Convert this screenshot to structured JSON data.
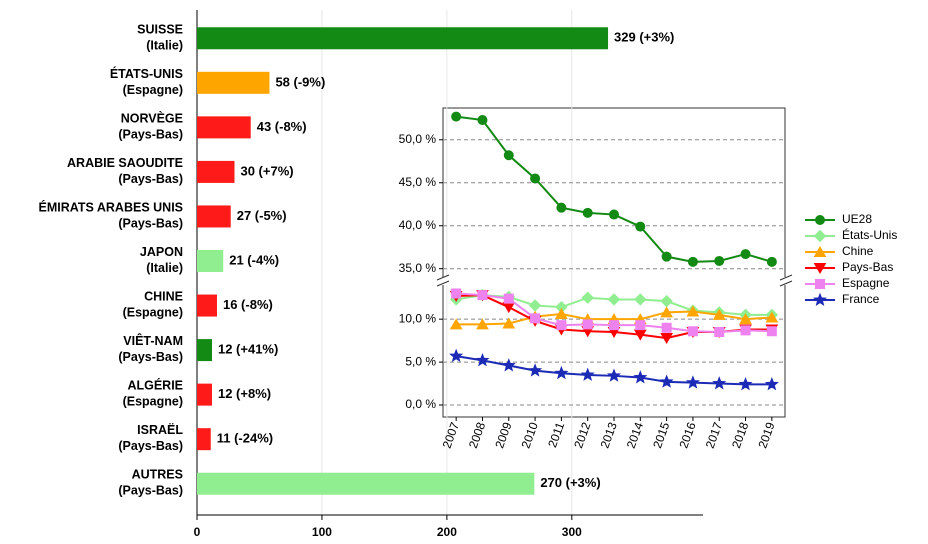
{
  "chart_data": [
    {
      "type": "hbar",
      "categories": [
        "SUISSE",
        "ÉTATS-UNIS",
        "NORVÈGE",
        "ARABIE SAOUDITE",
        "ÉMIRATS ARABES UNIS",
        "JAPON",
        "CHINE",
        "VIÊT-NAM",
        "ALGÉRIE",
        "ISRAËL",
        "AUTRES"
      ],
      "category_notes": [
        "(Italie)",
        "(Espagne)",
        "(Pays-Bas)",
        "(Pays-Bas)",
        "(Pays-Bas)",
        "(Italie)",
        "(Espagne)",
        "(Pays-Bas)",
        "(Espagne)",
        "(Pays-Bas)",
        "(Pays-Bas)"
      ],
      "values": [
        329,
        58,
        43,
        30,
        27,
        21,
        16,
        12,
        12,
        11,
        270
      ],
      "value_labels": [
        "329 (+3%)",
        "58 (-9%)",
        "43 (-8%)",
        "30 (+7%)",
        "27 (-5%)",
        "21 (-4%)",
        "16 (-8%)",
        "12 (+41%)",
        "12 (+8%)",
        "11 (-24%)",
        "270 (+3%)"
      ],
      "colors": [
        "#138a13",
        "#ffa500",
        "#ff1a1a",
        "#ff1a1a",
        "#ff1a1a",
        "#90ee90",
        "#ff1a1a",
        "#138a13",
        "#ff1a1a",
        "#ff1a1a",
        "#90ee90"
      ],
      "xlim": [
        0,
        405
      ],
      "xticks": [
        0,
        100,
        200,
        300
      ],
      "grid": true
    },
    {
      "type": "line",
      "x": [
        2007,
        2008,
        2009,
        2010,
        2011,
        2012,
        2013,
        2014,
        2015,
        2016,
        2017,
        2018,
        2019
      ],
      "xlim": [
        2006.5,
        2019.5
      ],
      "ylim": [
        -1.4,
        14.1
      ],
      "yticks": [
        {
          "value": 0,
          "label": "0,0 %"
        },
        {
          "value": 5,
          "label": "5,0 %"
        },
        {
          "value": 10,
          "label": "10,0 %"
        }
      ],
      "ylim_upper": [
        33.8,
        53.7
      ],
      "yticks_upper": [
        {
          "value": 35,
          "label": "35,0 %"
        },
        {
          "value": 40,
          "label": "40,0 %"
        },
        {
          "value": 45,
          "label": "45,0 %"
        },
        {
          "value": 50,
          "label": "50,0 %"
        }
      ],
      "grid": true,
      "legend": "right",
      "series": [
        {
          "name": "UE28",
          "color": "#138a13",
          "marker": "circle",
          "axis": "upper",
          "values": [
            52.7,
            52.3,
            48.2,
            45.5,
            42.1,
            41.5,
            41.3,
            39.9,
            36.4,
            35.8,
            35.9,
            36.7,
            35.8
          ]
        },
        {
          "name": "États-Unis",
          "color": "#90ee90",
          "marker": "diamond",
          "values": [
            12.3,
            12.8,
            12.6,
            11.6,
            11.4,
            12.5,
            12.3,
            12.3,
            12.1,
            11.0,
            10.8,
            10.5,
            10.5
          ]
        },
        {
          "name": "Chine",
          "color": "#ffa500",
          "marker": "triangle",
          "values": [
            9.4,
            9.4,
            9.5,
            10.3,
            10.6,
            10.0,
            10.0,
            10.0,
            10.8,
            10.9,
            10.5,
            10.0,
            10.2
          ]
        },
        {
          "name": "Pays-Bas",
          "color": "#ff0000",
          "marker": "triangle-down",
          "values": [
            12.7,
            12.8,
            11.4,
            9.8,
            8.8,
            8.6,
            8.5,
            8.2,
            7.8,
            8.5,
            8.5,
            8.8,
            8.8
          ]
        },
        {
          "name": "Espagne",
          "color": "#ee82ee",
          "marker": "square",
          "values": [
            13.0,
            12.8,
            12.4,
            10.1,
            9.3,
            9.4,
            9.3,
            9.3,
            9.0,
            8.6,
            8.5,
            8.7,
            8.6
          ]
        },
        {
          "name": "France",
          "color": "#1c2bb5",
          "marker": "star",
          "values": [
            5.7,
            5.2,
            4.6,
            4.0,
            3.7,
            3.5,
            3.4,
            3.2,
            2.7,
            2.6,
            2.5,
            2.4,
            2.4
          ]
        }
      ]
    }
  ]
}
